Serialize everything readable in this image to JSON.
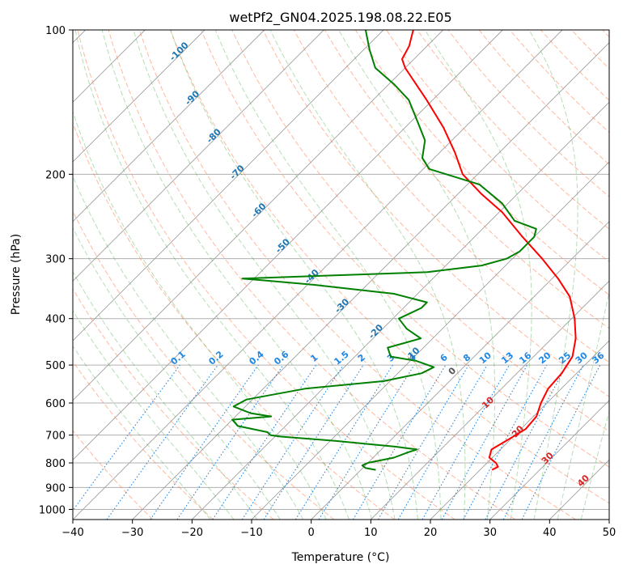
{
  "chart_data": {
    "type": "line",
    "title": "wetPf2_GN04.2025.198.08.22.E05",
    "xlabel": "Temperature (°C)",
    "ylabel": "Pressure (hPa)",
    "x_axis": {
      "scale": "skew-T",
      "range": [
        -40,
        50
      ],
      "ticks": [
        -40,
        -30,
        -20,
        -10,
        0,
        10,
        20,
        30,
        40,
        50
      ]
    },
    "y_axis": {
      "scale": "log",
      "inverted": true,
      "range": [
        1050,
        100
      ],
      "ticks": [
        100,
        200,
        300,
        400,
        500,
        600,
        700,
        800,
        900,
        1000
      ]
    },
    "grid": true,
    "colors": {
      "temperature": "#ff0000",
      "dewpoint": "#008000",
      "isotherm": "#a0a0a0",
      "dry_adiabat": "#ff7f50",
      "moist_adiabat": "#2ca02c",
      "mixing_ratio": "#1e88e5",
      "isotherm_label": "#1f77b4",
      "dry_adiabat_label": "#d62728"
    },
    "series": [
      {
        "key": "temperature",
        "points": [
          [
            827,
            22.0
          ],
          [
            815,
            22.5
          ],
          [
            800,
            21.5
          ],
          [
            780,
            19.5
          ],
          [
            750,
            18.5
          ],
          [
            720,
            19.5
          ],
          [
            680,
            20.8
          ],
          [
            640,
            20.5
          ],
          [
            600,
            19.0
          ],
          [
            560,
            17.8
          ],
          [
            520,
            17.5
          ],
          [
            480,
            16.5
          ],
          [
            440,
            14.0
          ],
          [
            400,
            10.5
          ],
          [
            360,
            6.0
          ],
          [
            330,
            1.0
          ],
          [
            300,
            -5.0
          ],
          [
            270,
            -12.0
          ],
          [
            240,
            -19.5
          ],
          [
            220,
            -26.0
          ],
          [
            200,
            -32.5
          ],
          [
            180,
            -37.5
          ],
          [
            160,
            -43.5
          ],
          [
            140,
            -51.0
          ],
          [
            120,
            -60.0
          ],
          [
            115,
            -62.0
          ],
          [
            108,
            -63.0
          ],
          [
            100,
            -65.0
          ]
        ]
      },
      {
        "key": "dewpoint",
        "points": [
          [
            827,
            2.5
          ],
          [
            820,
            0.5
          ],
          [
            810,
            -0.5
          ],
          [
            800,
            0.0
          ],
          [
            780,
            3.5
          ],
          [
            760,
            5.0
          ],
          [
            750,
            6.0
          ],
          [
            745,
            4.0
          ],
          [
            740,
            2.0
          ],
          [
            720,
            -9.0
          ],
          [
            705,
            -19.0
          ],
          [
            700,
            -21.0
          ],
          [
            690,
            -22.0
          ],
          [
            670,
            -28.0
          ],
          [
            650,
            -30.0
          ],
          [
            640,
            -24.0
          ],
          [
            630,
            -28.0
          ],
          [
            610,
            -32.0
          ],
          [
            590,
            -31.0
          ],
          [
            560,
            -23.0
          ],
          [
            540,
            -11.0
          ],
          [
            520,
            -6.0
          ],
          [
            505,
            -5.0
          ],
          [
            490,
            -9.0
          ],
          [
            480,
            -14.0
          ],
          [
            460,
            -16.0
          ],
          [
            440,
            -12.0
          ],
          [
            420,
            -16.0
          ],
          [
            400,
            -19.0
          ],
          [
            380,
            -17.0
          ],
          [
            370,
            -17.0
          ],
          [
            355,
            -24.0
          ],
          [
            340,
            -39.0
          ],
          [
            333,
            -48.0
          ],
          [
            330,
            -52.0
          ],
          [
            325,
            -37.0
          ],
          [
            320,
            -22.0
          ],
          [
            310,
            -14.0
          ],
          [
            300,
            -11.0
          ],
          [
            290,
            -10.0
          ],
          [
            270,
            -10.0
          ],
          [
            260,
            -11.0
          ],
          [
            250,
            -16.0
          ],
          [
            230,
            -21.0
          ],
          [
            210,
            -28.0
          ],
          [
            195,
            -39.0
          ],
          [
            185,
            -42.0
          ],
          [
            170,
            -44.5
          ],
          [
            155,
            -49.0
          ],
          [
            140,
            -54.0
          ],
          [
            130,
            -59.0
          ],
          [
            120,
            -65.0
          ],
          [
            110,
            -69.0
          ],
          [
            100,
            -73.0
          ]
        ]
      }
    ],
    "isotherm_labels": [
      "-100",
      "-90",
      "-80",
      "-70",
      "-60",
      "-50",
      "-40",
      "-30",
      "-20",
      "-10"
    ],
    "isotherm_label_values": [
      -100,
      -90,
      -80,
      -70,
      -60,
      -50,
      -40,
      -30,
      -20,
      -10
    ],
    "mixing_ratio_labels": [
      "0.1",
      "0.2",
      "0.4",
      "0.6",
      "1",
      "1.5",
      "2",
      "3",
      "4",
      "6",
      "8",
      "10",
      "13",
      "16",
      "20",
      "25",
      "30",
      "36"
    ],
    "mixing_ratio_values": [
      0.1,
      0.2,
      0.4,
      0.6,
      1,
      1.5,
      2,
      3,
      4,
      6,
      8,
      10,
      13,
      16,
      20,
      25,
      30,
      36
    ],
    "dry_adiabat_labels": [
      "0",
      "10",
      "20",
      "30",
      "40"
    ]
  }
}
